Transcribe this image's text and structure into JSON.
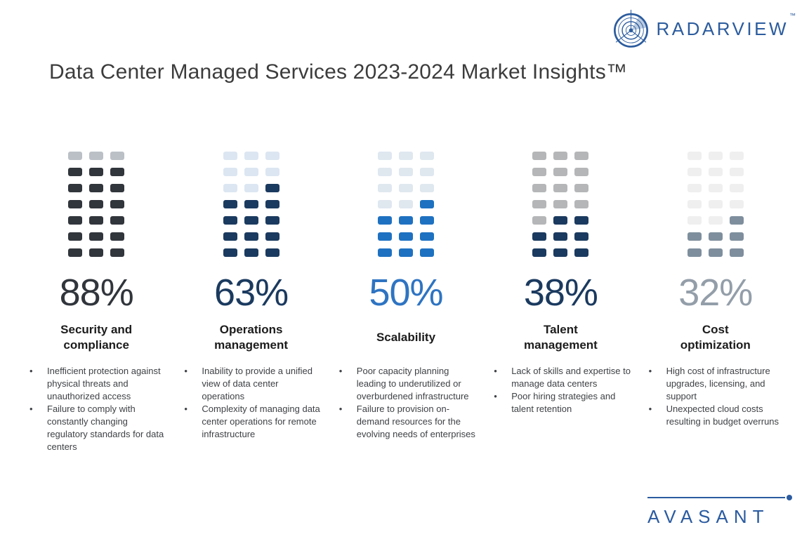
{
  "header": {
    "title": "Data Center Managed Services 2023-2024 Market Insights™",
    "radarview_logo": {
      "text": "RADARVIEW",
      "tm": "™",
      "color": "#2C5C9E"
    }
  },
  "ui": {
    "bullet_char": "•"
  },
  "chart_data": {
    "type": "waffle",
    "unit": "percent",
    "grid": {
      "rows": 7,
      "cols": 3
    },
    "categories": [
      "Security and compliance",
      "Operations management",
      "Scalability",
      "Talent management",
      "Cost optimization"
    ],
    "values": [
      88,
      63,
      50,
      38,
      32
    ],
    "columns": [
      {
        "percent_label": "88%",
        "value": 88,
        "title": "Security and compliance",
        "fill_color": "#31353C",
        "empty_color": "#BBC0C7",
        "percent_color": "#31353C",
        "cells": [
          0,
          0,
          0,
          1,
          1,
          1,
          1,
          1,
          1,
          1,
          1,
          1,
          1,
          1,
          1,
          1,
          1,
          1,
          1,
          1,
          1
        ],
        "bullets": [
          "Inefficient protection against physical threats and unauthorized access",
          "Failure to comply with constantly changing regulatory standards for data centers"
        ]
      },
      {
        "percent_label": "63%",
        "value": 63,
        "title": "Operations management",
        "fill_color": "#1B3A5F",
        "empty_color": "#DCE6F2",
        "percent_color": "#1B3A5F",
        "cells": [
          0,
          0,
          0,
          0,
          0,
          0,
          0,
          0,
          1,
          1,
          1,
          1,
          1,
          1,
          1,
          1,
          1,
          1,
          1,
          1,
          1
        ],
        "bullets": [
          "Inability to provide a unified view of data center operations",
          "Complexity of managing data center operations for remote infrastructure"
        ]
      },
      {
        "percent_label": "50%",
        "value": 50,
        "title": "Scalability",
        "fill_color": "#1E71C1",
        "empty_color": "#DFE7EF",
        "percent_color": "#2E74C2",
        "cells": [
          0,
          0,
          0,
          0,
          0,
          0,
          0,
          0,
          0,
          0,
          0,
          1,
          1,
          1,
          1,
          1,
          1,
          1,
          1,
          1,
          1
        ],
        "bullets": [
          "Poor capacity planning leading to underutilized or overburdened infrastructure",
          "Failure to provision on-demand resources for the evolving needs of enterprises"
        ]
      },
      {
        "percent_label": "38%",
        "value": 38,
        "title": "Talent management",
        "fill_color": "#1B3A5F",
        "empty_color": "#B5B6B8",
        "percent_color": "#1B3A5F",
        "cells": [
          0,
          0,
          0,
          0,
          0,
          0,
          0,
          0,
          0,
          0,
          0,
          0,
          0,
          1,
          1,
          1,
          1,
          1,
          1,
          1,
          1
        ],
        "bullets": [
          "Lack of skills and expertise to manage data centers",
          "Poor hiring strategies and talent retention"
        ]
      },
      {
        "percent_label": "32%",
        "value": 32,
        "title": "Cost optimization",
        "fill_color": "#7E8E9D",
        "empty_color": "#EFEFF0",
        "percent_color": "#939EA9",
        "cells": [
          0,
          0,
          0,
          0,
          0,
          0,
          0,
          0,
          0,
          0,
          0,
          0,
          0,
          0,
          1,
          1,
          1,
          1,
          1,
          1,
          1
        ],
        "bullets": [
          "High cost of infrastructure upgrades, licensing, and support",
          "Unexpected cloud costs resulting in budget overruns"
        ]
      }
    ]
  },
  "footer": {
    "avasant_logo": {
      "text": "AVASANT",
      "color": "#2B5BA0"
    }
  }
}
